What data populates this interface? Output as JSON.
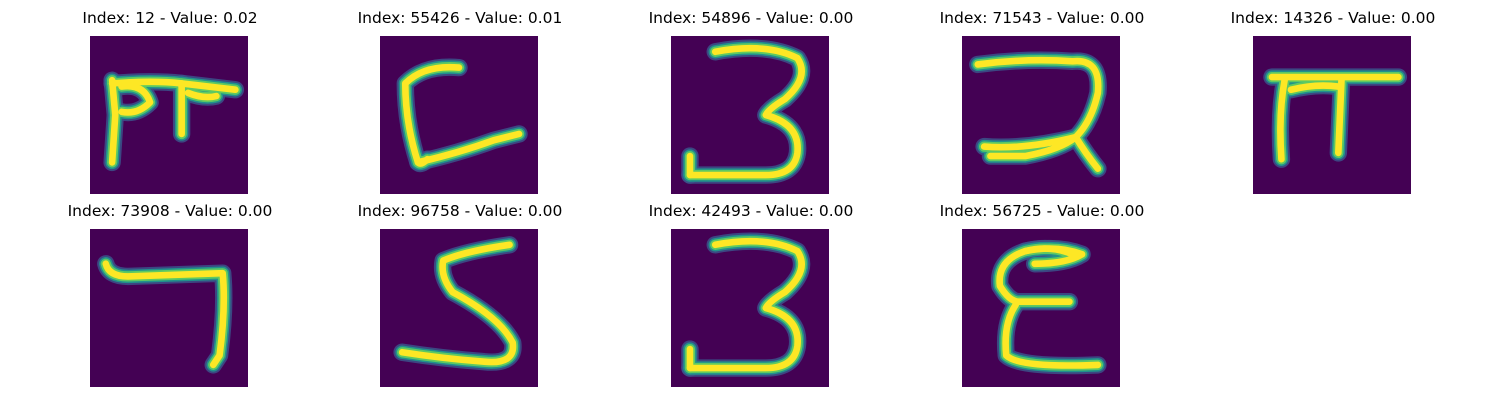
{
  "colors": {
    "background": "#440154",
    "stroke_core": "#fde725",
    "stroke_mid": "#5ec962",
    "stroke_edge": "#21918c",
    "stroke_outer": "#3b528b"
  },
  "panels": [
    {
      "title": "Index: 12 - Value: 0.02",
      "glyph": "hindi-ma-like"
    },
    {
      "title": "Index: 55426 - Value: 0.01",
      "glyph": "L-shape"
    },
    {
      "title": "Index: 54896 - Value: 0.00",
      "glyph": "three-like"
    },
    {
      "title": "Index: 71543 - Value: 0.00",
      "glyph": "hindi-ra-like"
    },
    {
      "title": "Index: 14326 - Value: 0.00",
      "glyph": "pi-like"
    },
    {
      "title": "Index: 73908 - Value: 0.00",
      "glyph": "seven-like"
    },
    {
      "title": "Index: 96758 - Value: 0.00",
      "glyph": "five-like"
    },
    {
      "title": "Index: 42493 - Value: 0.00",
      "glyph": "three-like"
    },
    {
      "title": "Index: 56725 - Value: 0.00",
      "glyph": "epsilon-like"
    }
  ]
}
